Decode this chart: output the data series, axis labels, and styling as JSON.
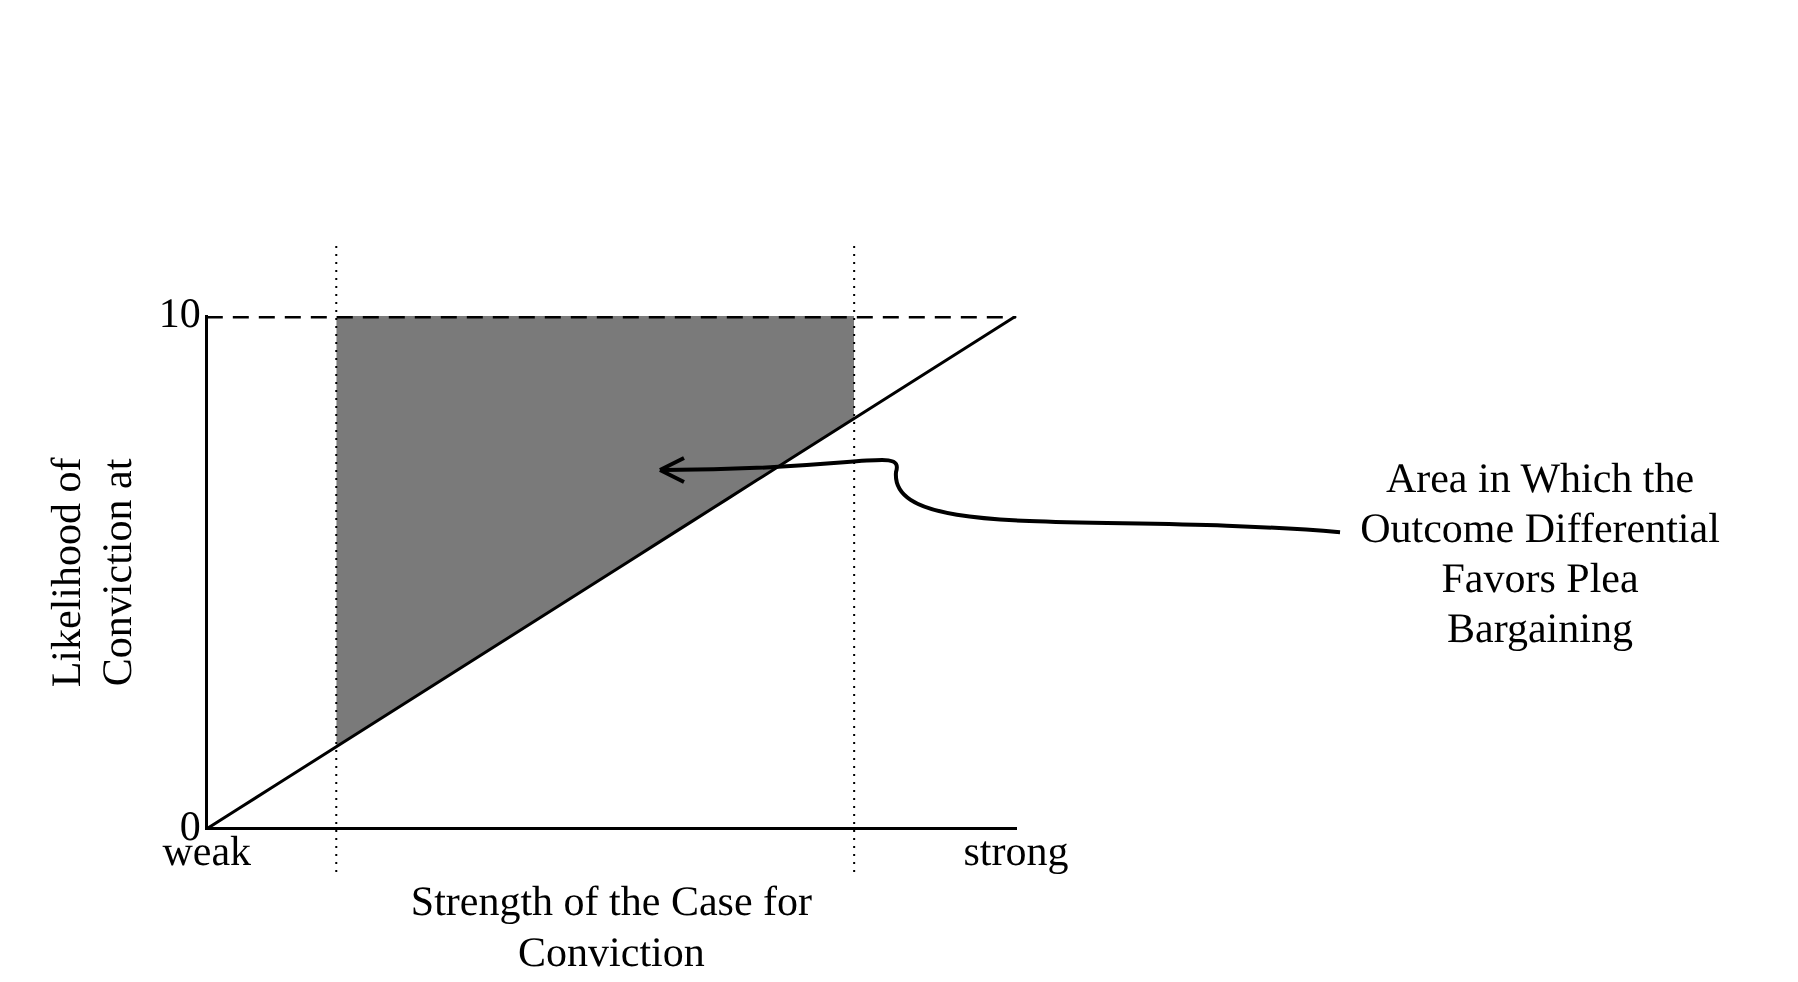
{
  "chart_data": {
    "type": "line",
    "xlabel": "Strength of the Case for Conviction",
    "ylabel": "Likelihood of Conviction at",
    "categories": [
      "weak",
      null,
      null,
      null,
      null,
      null,
      null,
      null,
      null,
      null,
      null,
      null,
      null,
      null,
      null,
      null,
      null,
      null,
      null,
      null,
      null,
      null,
      null,
      null,
      null,
      "strong"
    ],
    "ylim": [
      0,
      10
    ],
    "yticks": [
      0,
      10
    ],
    "grid": false,
    "legend": false,
    "marker": "none",
    "series": [
      {
        "color": "#000000",
        "line_style": "solid",
        "values": [
          0,
          0.4,
          0.8,
          1.2,
          1.6,
          2,
          2.4,
          2.8,
          3.2,
          3.6,
          4,
          4.4,
          4.8,
          5.2,
          5.6,
          6,
          6.4,
          6.8,
          7.2,
          7.6,
          8,
          8.4,
          8.8,
          9.2,
          9.6,
          10
        ]
      },
      {
        "color": "#000000",
        "line_style": "dashed",
        "values": [
          10,
          10,
          10,
          10,
          10,
          10,
          10,
          10,
          10,
          10,
          10,
          10,
          10,
          10,
          10,
          10,
          10,
          10,
          10,
          10,
          10,
          10,
          10,
          10,
          10,
          10
        ]
      },
      {
        "type": "area",
        "color": "#7a7a7a",
        "line_style": "dotted",
        "values": [
          null,
          null,
          null,
          null,
          10,
          10,
          10,
          10,
          10,
          10,
          10,
          10,
          10,
          10,
          10,
          10,
          10,
          10,
          10,
          10,
          10,
          null,
          null,
          null,
          null,
          null
        ]
      }
    ],
    "annotations": [
      "Area in Which the Outcome Differential Favors Plea Bargaining"
    ]
  }
}
